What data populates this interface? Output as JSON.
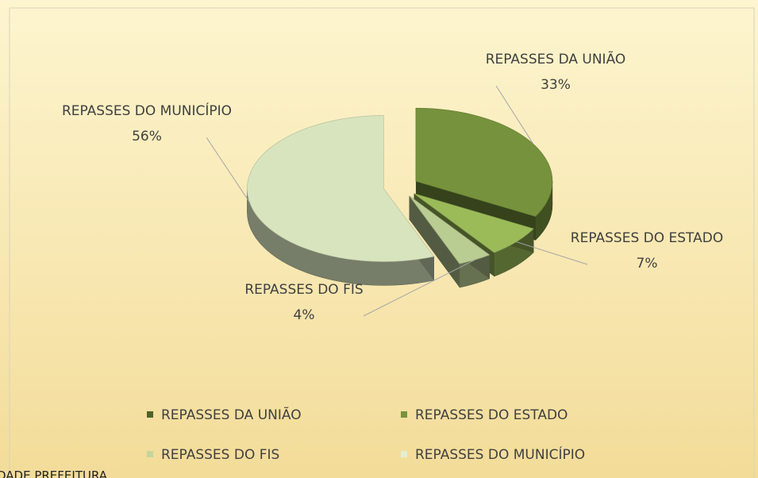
{
  "chart_data": {
    "type": "pie",
    "categories": [
      "REPASSES DA UNIÃO",
      "REPASSES DO ESTADO",
      "REPASSES DO FIS",
      "REPASSES DO MUNICÍPIO"
    ],
    "values": [
      33,
      7,
      4,
      56
    ],
    "value_labels": [
      "33%",
      "7%",
      "4%",
      "56%"
    ],
    "colors": [
      "#76923c",
      "#9bbb59",
      "#b9cd93",
      "#d7e4bd"
    ],
    "legend_colors": [
      "#4f6228",
      "#77933c",
      "#c3d69b",
      "#e4edd3"
    ],
    "legend": "bottom"
  },
  "footer_text": "DADE PREFEITURA"
}
